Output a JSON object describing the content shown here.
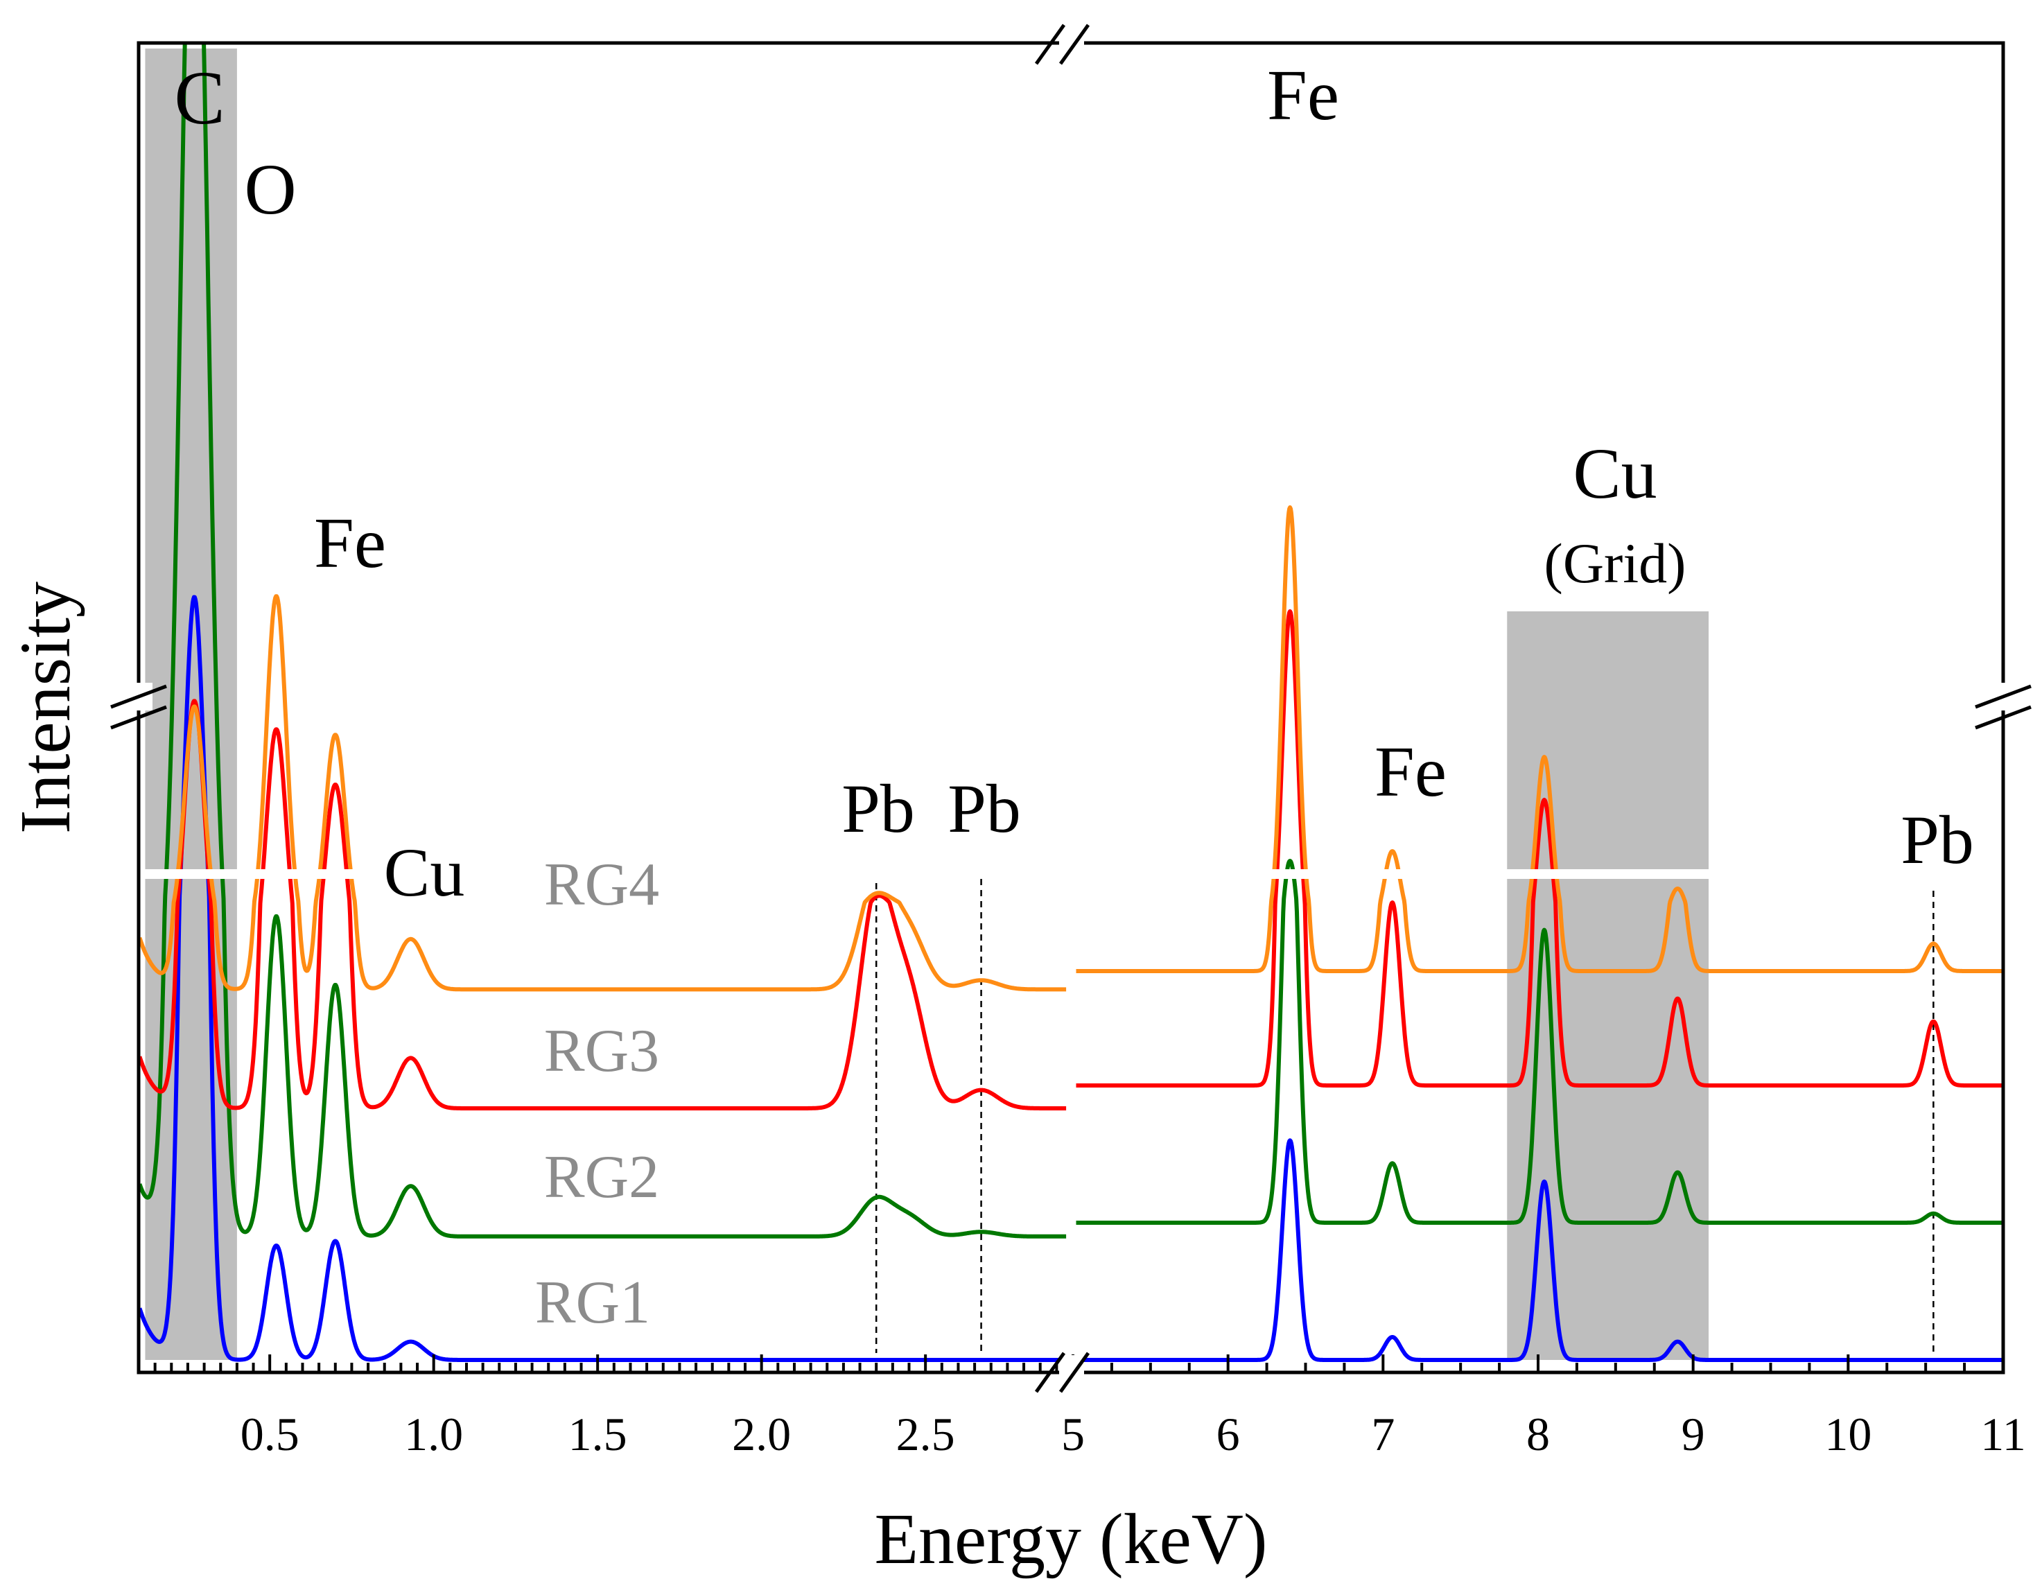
{
  "chart_data": {
    "type": "line",
    "xlabel": "Energy (keV)",
    "ylabel": "Intensity",
    "x_axis_break": true,
    "y_axis_break": true,
    "segments": [
      {
        "xlim": [
          0.1,
          2.95
        ],
        "ticks": [
          0.5,
          1.0,
          1.5,
          2.0,
          2.5
        ],
        "tick_labels": [
          "0.5",
          "1.0",
          "1.5",
          "2.0",
          "2.5"
        ]
      },
      {
        "xlim": [
          5,
          11
        ],
        "ticks": [
          5,
          6,
          7,
          8,
          9,
          10,
          11
        ],
        "tick_labels": [
          "5",
          "6",
          "7",
          "8",
          "9",
          "10",
          "11"
        ]
      }
    ],
    "shaded_regions": [
      {
        "label": "C",
        "x": [
          0.12,
          0.4
        ]
      },
      {
        "label": "Cu (Grid)",
        "x": [
          7.8,
          9.1
        ]
      }
    ],
    "dashed_markers": [
      2.35,
      2.67,
      10.55
    ],
    "peak_labels": [
      {
        "text": "C",
        "x": 0.27
      },
      {
        "text": "O",
        "x": 0.52
      },
      {
        "text": "Fe",
        "x": 0.7
      },
      {
        "text": "Cu",
        "x": 0.93
      },
      {
        "text": "Pb",
        "x": 2.35
      },
      {
        "text": "Pb",
        "x": 2.67
      },
      {
        "text": "Fe",
        "x": 6.4
      },
      {
        "text": "Fe",
        "x": 7.06
      },
      {
        "text": "Cu",
        "x": 8.4
      },
      {
        "text": "(Grid)",
        "x": 8.4
      },
      {
        "text": "Pb",
        "x": 10.55
      }
    ],
    "series": [
      {
        "name": "RG1",
        "color": "#0000ff",
        "baseline": 0.0,
        "tail": 0.0,
        "peaks": [
          [
            0.27,
            3.2,
            0.03
          ],
          [
            0.52,
            0.25,
            0.03
          ],
          [
            0.7,
            0.26,
            0.03
          ],
          [
            0.93,
            0.04,
            0.04
          ],
          [
            6.4,
            0.48,
            0.05
          ],
          [
            7.06,
            0.05,
            0.05
          ],
          [
            8.04,
            0.39,
            0.05
          ],
          [
            8.9,
            0.04,
            0.05
          ]
        ]
      },
      {
        "name": "RG2",
        "color": "#007800",
        "baseline": 0.27,
        "tail": 0.3,
        "peaks": [
          [
            0.27,
            9.0,
            0.04
          ],
          [
            0.52,
            0.7,
            0.03
          ],
          [
            0.7,
            0.55,
            0.03
          ],
          [
            0.93,
            0.11,
            0.04
          ],
          [
            2.35,
            0.08,
            0.05
          ],
          [
            2.45,
            0.04,
            0.05
          ],
          [
            2.67,
            0.01,
            0.05
          ],
          [
            6.4,
            1.0,
            0.05
          ],
          [
            7.06,
            0.13,
            0.05
          ],
          [
            8.04,
            0.64,
            0.05
          ],
          [
            8.9,
            0.11,
            0.05
          ],
          [
            10.55,
            0.02,
            0.05
          ]
        ]
      },
      {
        "name": "RG3",
        "color": "#ff0000",
        "baseline": 0.55,
        "tail": 0.6,
        "peaks": [
          [
            0.27,
            1.9,
            0.03
          ],
          [
            0.52,
            1.7,
            0.03
          ],
          [
            0.7,
            1.3,
            0.03
          ],
          [
            0.93,
            0.11,
            0.04
          ],
          [
            2.35,
            0.46,
            0.05
          ],
          [
            2.45,
            0.24,
            0.05
          ],
          [
            2.67,
            0.04,
            0.05
          ],
          [
            6.4,
            2.5,
            0.05
          ],
          [
            7.06,
            0.4,
            0.05
          ],
          [
            8.04,
            1.14,
            0.05
          ],
          [
            8.9,
            0.19,
            0.05
          ],
          [
            10.55,
            0.14,
            0.05
          ]
        ]
      },
      {
        "name": "RG4",
        "color": "#ff8c14",
        "baseline": 0.81,
        "tail": 0.85,
        "peaks": [
          [
            0.27,
            1.6,
            0.03
          ],
          [
            0.52,
            2.4,
            0.03
          ],
          [
            0.7,
            1.4,
            0.03
          ],
          [
            0.93,
            0.11,
            0.04
          ],
          [
            2.35,
            0.24,
            0.05
          ],
          [
            2.45,
            0.12,
            0.05
          ],
          [
            2.67,
            0.02,
            0.05
          ],
          [
            6.4,
            3.0,
            0.05
          ],
          [
            7.06,
            0.52,
            0.05
          ],
          [
            8.04,
            1.2,
            0.05
          ],
          [
            8.9,
            0.25,
            0.05
          ],
          [
            10.55,
            0.06,
            0.05
          ]
        ]
      }
    ]
  }
}
